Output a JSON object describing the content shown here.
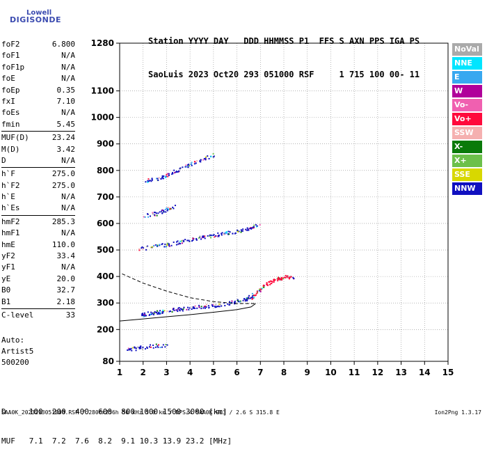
{
  "logo": {
    "brand": "Lowell",
    "name": "DIGISONDE"
  },
  "header": {
    "line1": "Station YYYY DAY   DDD HHMMSS P1  FFS S AXN PPS IGA PS",
    "line2": "SaoLuis 2023 Oct20 293 051000 RSF     1 715 100 00- 11"
  },
  "params_group1": [
    {
      "name": "foF2",
      "value": "6.800"
    },
    {
      "name": "foF1",
      "value": "N/A"
    },
    {
      "name": "foF1p",
      "value": "N/A"
    },
    {
      "name": "foE",
      "value": "N/A"
    },
    {
      "name": "foEp",
      "value": "0.35"
    },
    {
      "name": "fxI",
      "value": "7.10"
    },
    {
      "name": "foEs",
      "value": "N/A"
    },
    {
      "name": "fmin",
      "value": "5.45"
    }
  ],
  "params_group2": [
    {
      "name": "MUF(D)",
      "value": "23.24"
    },
    {
      "name": "M(D)",
      "value": "3.42"
    },
    {
      "name": "D",
      "value": "N/A"
    }
  ],
  "params_group3": [
    {
      "name": "h`F",
      "value": "275.0"
    },
    {
      "name": "h`F2",
      "value": "275.0"
    },
    {
      "name": "h`E",
      "value": "N/A"
    },
    {
      "name": "h`Es",
      "value": "N/A"
    }
  ],
  "params_group4": [
    {
      "name": "hmF2",
      "value": "285.3"
    },
    {
      "name": "hmF1",
      "value": "N/A"
    },
    {
      "name": "hmE",
      "value": "110.0"
    },
    {
      "name": "yF2",
      "value": "33.4"
    },
    {
      "name": "yF1",
      "value": "N/A"
    },
    {
      "name": "yE",
      "value": "20.0"
    },
    {
      "name": "B0",
      "value": "32.7"
    },
    {
      "name": "B1",
      "value": "2.18"
    }
  ],
  "params_group5": [
    {
      "name": "C-level",
      "value": "33"
    }
  ],
  "autoscaling": {
    "line1": "Auto:",
    "line2": "Artist5",
    "line3": "500200"
  },
  "legend": [
    {
      "label": "NoVal",
      "color": "#aaaaaa"
    },
    {
      "label": "NNE",
      "color": "#00e5ff"
    },
    {
      "label": "E",
      "color": "#38a8f0"
    },
    {
      "label": "W",
      "color": "#b0009a"
    },
    {
      "label": "Vo-",
      "color": "#f060b0"
    },
    {
      "label": "Vo+",
      "color": "#ff0a3c"
    },
    {
      "label": "SSW",
      "color": "#f5b0b0"
    },
    {
      "label": "X-",
      "color": "#0a7a0a"
    },
    {
      "label": "X+",
      "color": "#6cc04a"
    },
    {
      "label": "SSE",
      "color": "#d8d800"
    },
    {
      "label": "NNW",
      "color": "#1010c0"
    }
  ],
  "dmuf": {
    "d_line": "D     100  200  400  600  800 1000 1500 3000 [km]",
    "muf_line": "MUF   7.1  7.2  7.6  8.2  9.1 10.3 13.9 23.2 [MHz]"
  },
  "footer": {
    "left": "SAA0K_2023293051000.RSF / 280fx256h 50 kHz 5.0 km / DPS-4 SAA0K 903 / 2.6 S 315.8 E",
    "right": "Ion2Png 1.3.17"
  },
  "chart_data": {
    "type": "scatter",
    "xlim": [
      1,
      15
    ],
    "ylim": [
      80,
      1280
    ],
    "x_ticks": [
      "1",
      "2",
      "3",
      "4",
      "5",
      "6",
      "7",
      "8",
      "9",
      "10",
      "11",
      "12",
      "13",
      "14",
      "15"
    ],
    "y_ticks": [
      {
        "value": 80,
        "label": "80"
      },
      {
        "value": 200,
        "label": "200"
      },
      {
        "value": 300,
        "label": "300"
      },
      {
        "value": 400,
        "label": "400"
      },
      {
        "value": 500,
        "label": "500"
      },
      {
        "value": 600,
        "label": "600"
      },
      {
        "value": 700,
        "label": "700"
      },
      {
        "value": 800,
        "label": "800"
      },
      {
        "value": 900,
        "label": "900"
      },
      {
        "value": 1000,
        "label": "1000"
      },
      {
        "value": 1100,
        "label": "1100"
      },
      {
        "value": 1280,
        "label": "1280"
      }
    ],
    "grid": true,
    "echo_traces": [
      {
        "name": "F2 O-trace",
        "color": "#1010c0",
        "points": [
          [
            1.9,
            255
          ],
          [
            2.2,
            262
          ],
          [
            2.6,
            268
          ],
          [
            3.0,
            272
          ],
          [
            3.5,
            278
          ],
          [
            4.0,
            283
          ],
          [
            4.5,
            288
          ],
          [
            5.0,
            293
          ],
          [
            5.5,
            300
          ],
          [
            6.0,
            308
          ],
          [
            6.4,
            318
          ],
          [
            6.7,
            335
          ]
        ]
      },
      {
        "name": "F2 X-trace",
        "color": "#ff0a3c",
        "points": [
          [
            6.6,
            320
          ],
          [
            6.9,
            345
          ],
          [
            7.2,
            370
          ],
          [
            7.5,
            385
          ],
          [
            7.8,
            395
          ],
          [
            8.1,
            400
          ],
          [
            8.4,
            395
          ]
        ]
      },
      {
        "name": "Multihop 2",
        "color": "#1010c0",
        "points": [
          [
            1.8,
            505
          ],
          [
            2.5,
            515
          ],
          [
            3.0,
            522
          ],
          [
            3.5,
            530
          ],
          [
            4.0,
            540
          ],
          [
            4.5,
            550
          ],
          [
            5.0,
            558
          ],
          [
            5.5,
            565
          ],
          [
            6.0,
            572
          ],
          [
            6.5,
            585
          ],
          [
            7.0,
            600
          ]
        ]
      },
      {
        "name": "Multihop 3",
        "color": "#1010c0",
        "points": [
          [
            2.0,
            760
          ],
          [
            2.6,
            770
          ],
          [
            3.0,
            785
          ],
          [
            3.5,
            805
          ],
          [
            4.0,
            825
          ],
          [
            4.5,
            845
          ],
          [
            5.0,
            860
          ]
        ]
      },
      {
        "name": "Multihop 2b",
        "color": "#1010c0",
        "points": [
          [
            2.0,
            630
          ],
          [
            2.6,
            640
          ],
          [
            3.0,
            655
          ],
          [
            3.4,
            670
          ]
        ]
      },
      {
        "name": "Low echoes",
        "color": "#1010c0",
        "points": [
          [
            1.3,
            130
          ],
          [
            1.7,
            130
          ],
          [
            2.3,
            140
          ],
          [
            3.1,
            140
          ]
        ]
      }
    ],
    "fitted_profile": [
      [
        1.0,
        232
      ],
      [
        2.0,
        240
      ],
      [
        3.0,
        248
      ],
      [
        4.0,
        256
      ],
      [
        5.0,
        265
      ],
      [
        6.0,
        275
      ],
      [
        6.6,
        285
      ],
      [
        6.8,
        298
      ]
    ],
    "fitted_profile_dashed": [
      [
        1.1,
        410
      ],
      [
        2.0,
        375
      ],
      [
        3.0,
        345
      ],
      [
        4.0,
        320
      ],
      [
        5.0,
        305
      ],
      [
        6.0,
        298
      ],
      [
        6.8,
        298
      ]
    ]
  }
}
